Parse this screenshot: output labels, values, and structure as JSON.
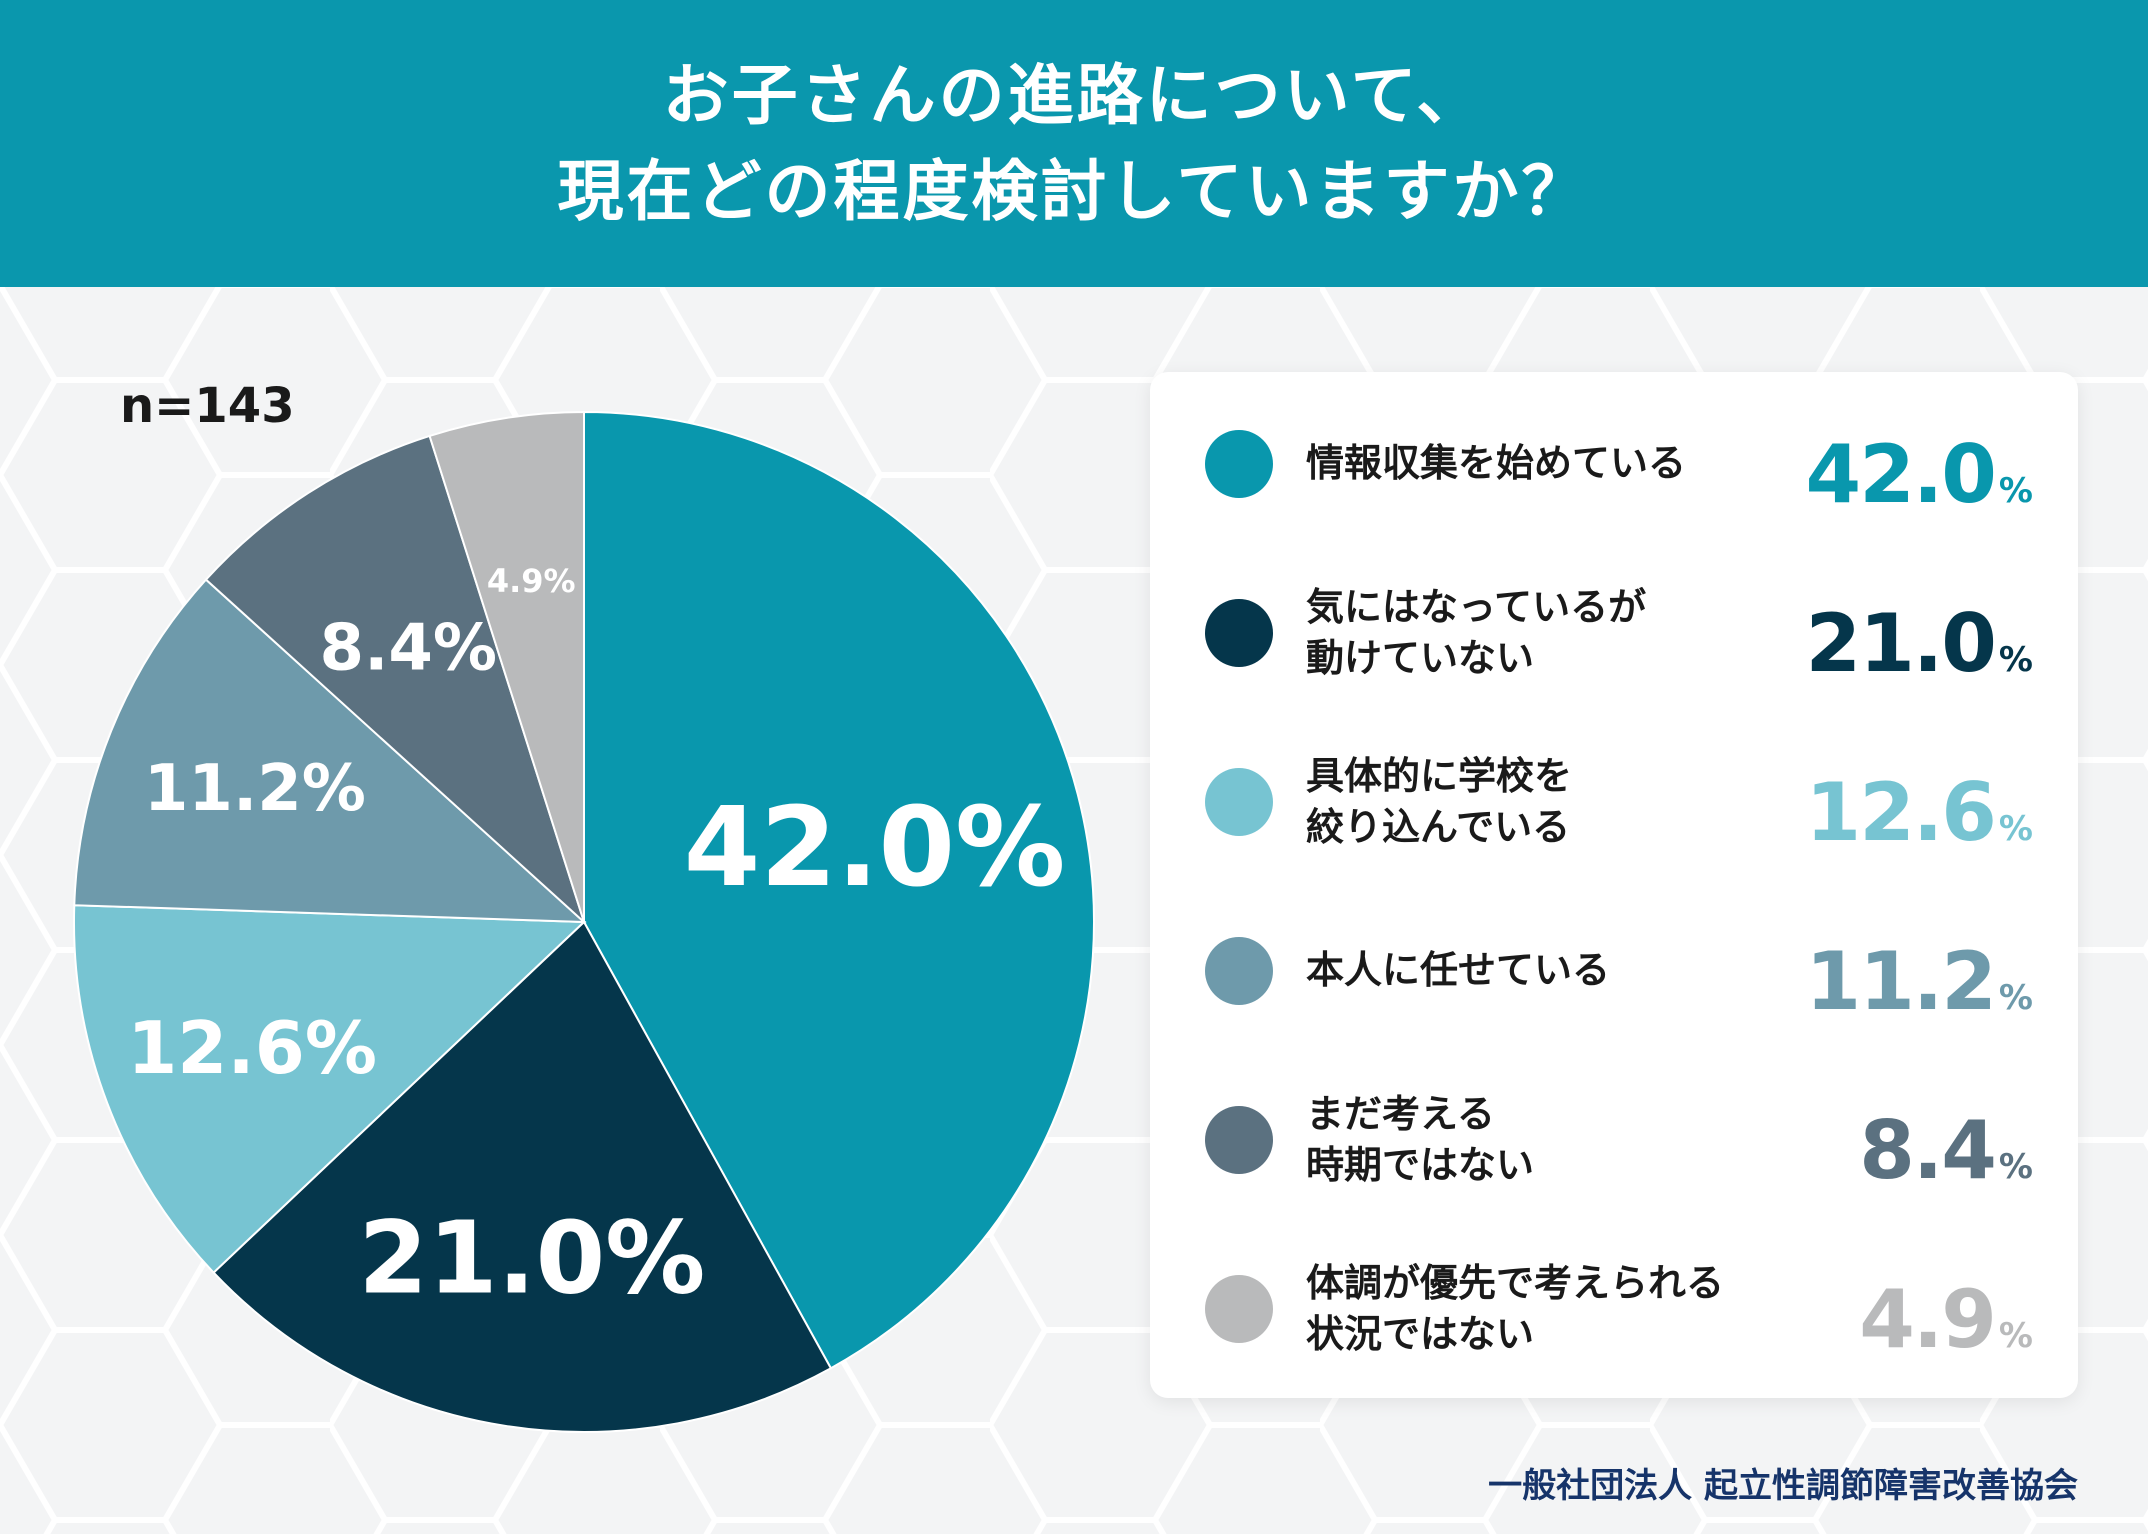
{
  "header": {
    "title_line1": "お子さんの進路について、",
    "title_line2": "現在どの程度検討していますか？"
  },
  "sample_size": "n=143",
  "organization": "一般社団法人 起立性調節障害改善協会",
  "colors": {
    "header_bg": "#0a97ad",
    "series": [
      "#0997ad",
      "#05364b",
      "#77c4d2",
      "#6e9aab",
      "#5b7180",
      "#b9babb"
    ]
  },
  "chart_data": {
    "type": "pie",
    "unit": "%",
    "categories": [
      "情報収集を始めている",
      "気にはなっているが\n動けていない",
      "具体的に学校を\n絞り込んでいる",
      "本人に任せている",
      "まだ考える\n時期ではない",
      "体調が優先で考えられる\n状況ではない"
    ],
    "values": [
      42.0,
      21.0,
      12.6,
      11.2,
      8.4,
      4.9
    ],
    "value_labels": [
      "42.0",
      "21.0",
      "12.6",
      "11.2",
      "8.4",
      "4.9"
    ],
    "slice_labels": [
      "42.0%",
      "21.0%",
      "12.6%",
      "11.2%",
      "8.4%",
      "4.9%"
    ],
    "percent_sign": "%",
    "start": "12 o'clock, clockwise",
    "legend": "right"
  }
}
